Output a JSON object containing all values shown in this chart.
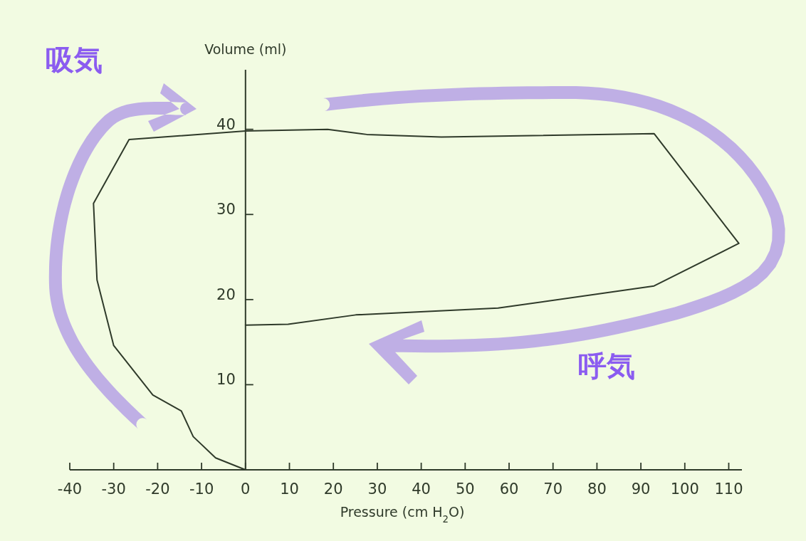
{
  "chart_data": {
    "type": "line",
    "xlabel": "Pressure (cm H$_{2}$O)",
    "ylabel": "Volume (ml)",
    "annotations": [
      "吸気",
      "呼気"
    ],
    "x": [
      0,
      -6.8,
      -11.9,
      -14.6,
      -21.1,
      -30,
      -33.8,
      -34.6,
      -26.5,
      0,
      18.7,
      27.6,
      44.6,
      93,
      112.3,
      93,
      57.5,
      25.1,
      9.7,
      0
    ],
    "series": [
      {
        "color": "#2f3a2a",
        "values": [
          0,
          1.4,
          3.9,
          6.9,
          8.8,
          14.6,
          22.3,
          31.3,
          38.8,
          39.8,
          40,
          39.4,
          39.1,
          39.5,
          26.6,
          21.6,
          19,
          18.2,
          17.1,
          17
        ]
      }
    ],
    "xlim": [
      -40,
      113
    ],
    "ylim": [
      0,
      47
    ],
    "xticks": [
      -40,
      -30,
      -20,
      -10,
      0,
      10,
      20,
      30,
      40,
      50,
      60,
      70,
      80,
      90,
      100,
      110
    ],
    "yticks": [
      10,
      20,
      30,
      40
    ]
  }
}
